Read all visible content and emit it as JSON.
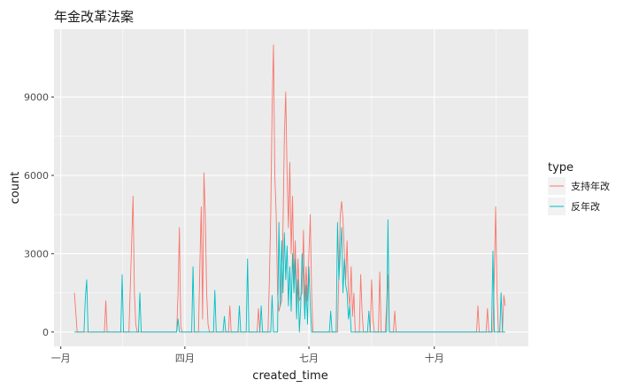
{
  "chart_data": {
    "type": "line",
    "title": "年金改革法案",
    "xlabel": "created_time",
    "ylabel": "count",
    "x_ticks": [
      "一月",
      "四月",
      "七月",
      "十月"
    ],
    "y_ticks": [
      0,
      3000,
      6000,
      9000
    ],
    "ylim": [
      -550,
      11600
    ],
    "legend": {
      "title": "type",
      "position": "right"
    },
    "grid": true,
    "series": [
      {
        "name": "支持年改",
        "color": "#F8766D",
        "points": [
          [
            "2016-01-11",
            1500
          ],
          [
            "2016-01-13",
            0
          ],
          [
            "2016-02-02",
            0
          ],
          [
            "2016-02-03",
            1200
          ],
          [
            "2016-02-04",
            0
          ],
          [
            "2016-02-20",
            0
          ],
          [
            "2016-02-22",
            3500
          ],
          [
            "2016-02-23",
            5200
          ],
          [
            "2016-02-24",
            1500
          ],
          [
            "2016-02-25",
            300
          ],
          [
            "2016-02-26",
            0
          ],
          [
            "2016-03-26",
            0
          ],
          [
            "2016-03-27",
            1500
          ],
          [
            "2016-03-28",
            4000
          ],
          [
            "2016-03-29",
            200
          ],
          [
            "2016-03-30",
            0
          ],
          [
            "2016-04-11",
            0
          ],
          [
            "2016-04-12",
            2500
          ],
          [
            "2016-04-13",
            4800
          ],
          [
            "2016-04-14",
            500
          ],
          [
            "2016-04-15",
            6100
          ],
          [
            "2016-04-16",
            4500
          ],
          [
            "2016-04-17",
            1500
          ],
          [
            "2016-04-18",
            300
          ],
          [
            "2016-04-19",
            0
          ],
          [
            "2016-05-03",
            0
          ],
          [
            "2016-05-04",
            1000
          ],
          [
            "2016-05-05",
            0
          ],
          [
            "2016-05-24",
            0
          ],
          [
            "2016-05-25",
            900
          ],
          [
            "2016-05-26",
            0
          ],
          [
            "2016-06-01",
            0
          ],
          [
            "2016-06-02",
            2000
          ],
          [
            "2016-06-03",
            4500
          ],
          [
            "2016-06-04",
            8500
          ],
          [
            "2016-06-05",
            11000
          ],
          [
            "2016-06-06",
            6000
          ],
          [
            "2016-06-07",
            4500
          ],
          [
            "2016-06-08",
            1500
          ],
          [
            "2016-06-09",
            800
          ],
          [
            "2016-06-11",
            1200
          ],
          [
            "2016-06-12",
            4000
          ],
          [
            "2016-06-13",
            7500
          ],
          [
            "2016-06-14",
            9200
          ],
          [
            "2016-06-15",
            6000
          ],
          [
            "2016-06-16",
            4000
          ],
          [
            "2016-06-17",
            6500
          ],
          [
            "2016-06-18",
            3000
          ],
          [
            "2016-06-19",
            5200
          ],
          [
            "2016-06-20",
            2000
          ],
          [
            "2016-06-21",
            3500
          ],
          [
            "2016-06-22",
            1000
          ],
          [
            "2016-06-23",
            2800
          ],
          [
            "2016-06-24",
            1200
          ],
          [
            "2016-06-26",
            1500
          ],
          [
            "2016-06-27",
            3900
          ],
          [
            "2016-06-28",
            1000
          ],
          [
            "2016-06-29",
            2500
          ],
          [
            "2016-06-30",
            1200
          ],
          [
            "2016-07-01",
            3000
          ],
          [
            "2016-07-02",
            4500
          ],
          [
            "2016-07-03",
            1500
          ],
          [
            "2016-07-04",
            0
          ],
          [
            "2016-07-22",
            0
          ],
          [
            "2016-07-23",
            2200
          ],
          [
            "2016-07-24",
            4500
          ],
          [
            "2016-07-25",
            5000
          ],
          [
            "2016-07-26",
            4300
          ],
          [
            "2016-07-27",
            3000
          ],
          [
            "2016-07-28",
            2000
          ],
          [
            "2016-07-29",
            3500
          ],
          [
            "2016-07-30",
            1500
          ],
          [
            "2016-07-31",
            1000
          ],
          [
            "2016-08-01",
            2500
          ],
          [
            "2016-08-02",
            600
          ],
          [
            "2016-08-03",
            1500
          ],
          [
            "2016-08-04",
            0
          ],
          [
            "2016-08-07",
            0
          ],
          [
            "2016-08-08",
            2200
          ],
          [
            "2016-08-09",
            800
          ],
          [
            "2016-08-10",
            0
          ],
          [
            "2016-08-15",
            0
          ],
          [
            "2016-08-16",
            2000
          ],
          [
            "2016-08-17",
            500
          ],
          [
            "2016-08-18",
            0
          ],
          [
            "2016-08-21",
            0
          ],
          [
            "2016-08-22",
            2300
          ],
          [
            "2016-08-23",
            0
          ],
          [
            "2016-08-26",
            0
          ],
          [
            "2016-08-27",
            1000
          ],
          [
            "2016-08-28",
            2200
          ],
          [
            "2016-08-29",
            0
          ],
          [
            "2016-09-01",
            0
          ],
          [
            "2016-09-02",
            800
          ],
          [
            "2016-09-03",
            0
          ],
          [
            "2016-11-01",
            0
          ],
          [
            "2016-11-02",
            1000
          ],
          [
            "2016-11-03",
            0
          ],
          [
            "2016-11-08",
            0
          ],
          [
            "2016-11-09",
            900
          ],
          [
            "2016-11-10",
            0
          ],
          [
            "2016-11-13",
            0
          ],
          [
            "2016-11-14",
            2200
          ],
          [
            "2016-11-15",
            4800
          ],
          [
            "2016-11-16",
            1500
          ],
          [
            "2016-11-17",
            0
          ],
          [
            "2016-11-20",
            0
          ],
          [
            "2016-11-21",
            1400
          ],
          [
            "2016-11-22",
            1000
          ]
        ]
      },
      {
        "name": "反年改",
        "color": "#00BFC4",
        "points": [
          [
            "2016-01-11",
            0
          ],
          [
            "2016-01-18",
            0
          ],
          [
            "2016-01-19",
            1300
          ],
          [
            "2016-01-20",
            2000
          ],
          [
            "2016-01-21",
            0
          ],
          [
            "2016-02-14",
            0
          ],
          [
            "2016-02-15",
            2200
          ],
          [
            "2016-02-16",
            0
          ],
          [
            "2016-02-27",
            0
          ],
          [
            "2016-02-28",
            1500
          ],
          [
            "2016-02-29",
            0
          ],
          [
            "2016-03-26",
            0
          ],
          [
            "2016-03-27",
            500
          ],
          [
            "2016-03-28",
            0
          ],
          [
            "2016-04-06",
            0
          ],
          [
            "2016-04-07",
            2500
          ],
          [
            "2016-04-08",
            0
          ],
          [
            "2016-04-22",
            0
          ],
          [
            "2016-04-23",
            1600
          ],
          [
            "2016-04-24",
            0
          ],
          [
            "2016-04-29",
            0
          ],
          [
            "2016-04-30",
            600
          ],
          [
            "2016-05-01",
            0
          ],
          [
            "2016-05-10",
            0
          ],
          [
            "2016-05-11",
            1000
          ],
          [
            "2016-05-12",
            0
          ],
          [
            "2016-05-16",
            0
          ],
          [
            "2016-05-17",
            2800
          ],
          [
            "2016-05-18",
            0
          ],
          [
            "2016-05-26",
            0
          ],
          [
            "2016-05-27",
            1000
          ],
          [
            "2016-05-28",
            0
          ],
          [
            "2016-06-03",
            0
          ],
          [
            "2016-06-04",
            1400
          ],
          [
            "2016-06-05",
            0
          ],
          [
            "2016-06-08",
            0
          ],
          [
            "2016-06-09",
            4200
          ],
          [
            "2016-06-10",
            1000
          ],
          [
            "2016-06-11",
            3500
          ],
          [
            "2016-06-12",
            1500
          ],
          [
            "2016-06-13",
            3800
          ],
          [
            "2016-06-14",
            2000
          ],
          [
            "2016-06-15",
            3300
          ],
          [
            "2016-06-16",
            1000
          ],
          [
            "2016-06-17",
            2500
          ],
          [
            "2016-06-18",
            800
          ],
          [
            "2016-06-19",
            3000
          ],
          [
            "2016-06-20",
            1500
          ],
          [
            "2016-06-21",
            2800
          ],
          [
            "2016-06-22",
            500
          ],
          [
            "2016-06-23",
            2000
          ],
          [
            "2016-06-24",
            0
          ],
          [
            "2016-06-25",
            1000
          ],
          [
            "2016-06-26",
            3000
          ],
          [
            "2016-06-27",
            2200
          ],
          [
            "2016-06-28",
            500
          ],
          [
            "2016-06-29",
            1800
          ],
          [
            "2016-06-30",
            300
          ],
          [
            "2016-07-01",
            2500
          ],
          [
            "2016-07-02",
            1000
          ],
          [
            "2016-07-03",
            0
          ],
          [
            "2016-07-16",
            0
          ],
          [
            "2016-07-17",
            800
          ],
          [
            "2016-07-18",
            0
          ],
          [
            "2016-07-21",
            0
          ],
          [
            "2016-07-22",
            4200
          ],
          [
            "2016-07-23",
            2000
          ],
          [
            "2016-07-24",
            3000
          ],
          [
            "2016-07-25",
            4000
          ],
          [
            "2016-07-26",
            1500
          ],
          [
            "2016-07-27",
            2800
          ],
          [
            "2016-07-28",
            1800
          ],
          [
            "2016-07-29",
            1500
          ],
          [
            "2016-07-30",
            500
          ],
          [
            "2016-07-31",
            1000
          ],
          [
            "2016-08-01",
            0
          ],
          [
            "2016-08-13",
            0
          ],
          [
            "2016-08-14",
            800
          ],
          [
            "2016-08-15",
            0
          ],
          [
            "2016-08-27",
            0
          ],
          [
            "2016-08-28",
            4300
          ],
          [
            "2016-08-29",
            0
          ],
          [
            "2016-11-12",
            0
          ],
          [
            "2016-11-13",
            3100
          ],
          [
            "2016-11-14",
            0
          ],
          [
            "2016-11-18",
            0
          ],
          [
            "2016-11-19",
            1500
          ],
          [
            "2016-11-20",
            0
          ],
          [
            "2016-11-22",
            0
          ]
        ]
      }
    ]
  }
}
